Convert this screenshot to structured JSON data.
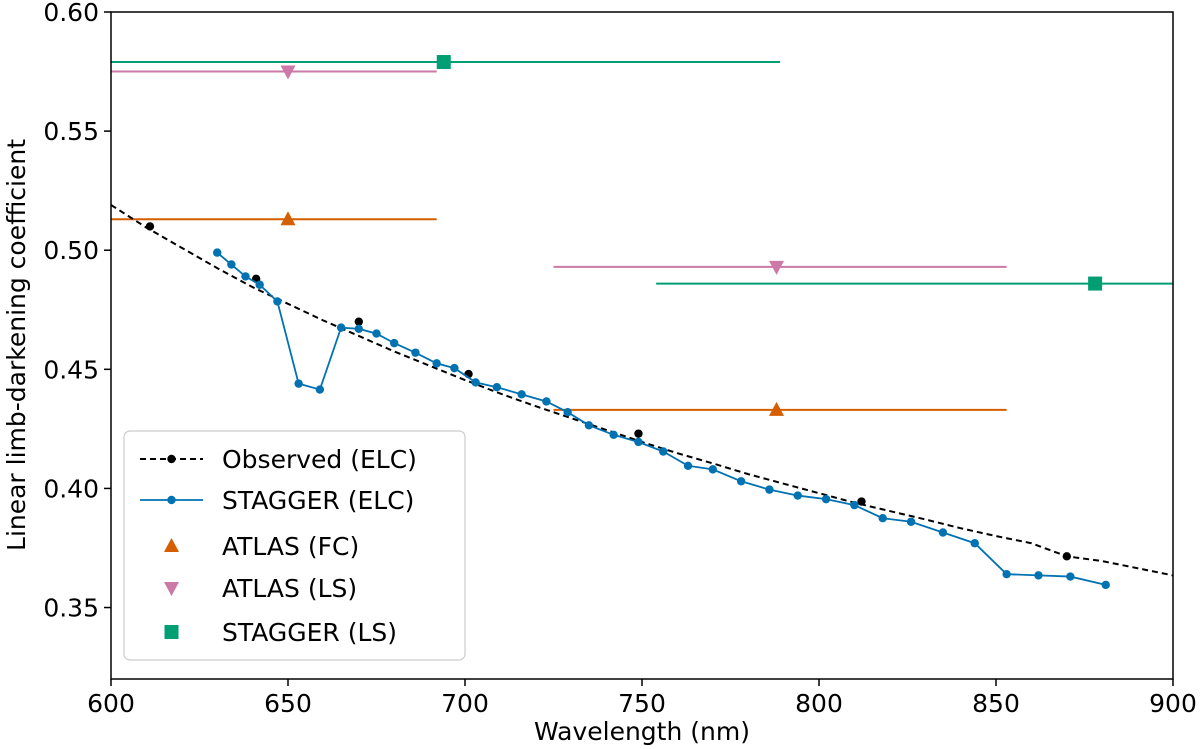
{
  "chart_data": {
    "type": "line",
    "title": "",
    "xlabel": "Wavelength (nm)",
    "ylabel": "Linear limb-darkening coefficient",
    "xlim": [
      600,
      900
    ],
    "ylim": [
      0.32,
      0.6
    ],
    "x_ticks": [
      600,
      650,
      700,
      750,
      800,
      850,
      900
    ],
    "x_tick_labels": [
      "600",
      "650",
      "700",
      "750",
      "800",
      "850",
      "900"
    ],
    "y_ticks": [
      0.35,
      0.4,
      0.45,
      0.5,
      0.55,
      0.6
    ],
    "y_tick_labels": [
      "0.35",
      "0.40",
      "0.45",
      "0.50",
      "0.55",
      "0.60"
    ],
    "grid": false,
    "legend_position": "lower-left",
    "series": [
      {
        "name": "Observed (ELC)",
        "kind": "dashed-line-with-points",
        "color": "#000000",
        "curve": [
          [
            600,
            0.519
          ],
          [
            610,
            0.5095
          ],
          [
            620,
            0.501
          ],
          [
            630,
            0.4925
          ],
          [
            640,
            0.4845
          ],
          [
            650,
            0.4775
          ],
          [
            660,
            0.4705
          ],
          [
            670,
            0.464
          ],
          [
            680,
            0.4575
          ],
          [
            690,
            0.4515
          ],
          [
            700,
            0.4455
          ],
          [
            710,
            0.4398
          ],
          [
            720,
            0.4345
          ],
          [
            730,
            0.4295
          ],
          [
            740,
            0.4245
          ],
          [
            750,
            0.4195
          ],
          [
            760,
            0.4148
          ],
          [
            770,
            0.4105
          ],
          [
            780,
            0.406
          ],
          [
            790,
            0.402
          ],
          [
            800,
            0.398
          ],
          [
            810,
            0.394
          ],
          [
            820,
            0.3905
          ],
          [
            830,
            0.387
          ],
          [
            840,
            0.3833
          ],
          [
            850,
            0.38
          ],
          [
            860,
            0.377
          ],
          [
            870,
            0.3715
          ],
          [
            880,
            0.3695
          ],
          [
            890,
            0.3665
          ],
          [
            900,
            0.3635
          ]
        ],
        "points": [
          [
            611,
            0.51
          ],
          [
            641,
            0.488
          ],
          [
            670,
            0.47
          ],
          [
            701,
            0.448
          ],
          [
            749,
            0.423
          ],
          [
            812,
            0.3945
          ],
          [
            870,
            0.3715
          ]
        ]
      },
      {
        "name": "STAGGER (ELC)",
        "kind": "line-with-points",
        "color": "#0072b2",
        "points": [
          [
            630,
            0.499
          ],
          [
            634,
            0.494
          ],
          [
            638,
            0.489
          ],
          [
            642,
            0.4855
          ],
          [
            647,
            0.4785
          ],
          [
            653,
            0.444
          ],
          [
            659,
            0.4415
          ],
          [
            665,
            0.4675
          ],
          [
            670,
            0.467
          ],
          [
            675,
            0.465
          ],
          [
            680,
            0.461
          ],
          [
            686,
            0.457
          ],
          [
            692,
            0.4525
          ],
          [
            697,
            0.4505
          ],
          [
            703,
            0.4445
          ],
          [
            709,
            0.4425
          ],
          [
            716,
            0.4395
          ],
          [
            723,
            0.4365
          ],
          [
            729,
            0.432
          ],
          [
            735,
            0.4265
          ],
          [
            742,
            0.4225
          ],
          [
            749,
            0.4195
          ],
          [
            756,
            0.4155
          ],
          [
            763,
            0.4095
          ],
          [
            770,
            0.408
          ],
          [
            778,
            0.403
          ],
          [
            786,
            0.3995
          ],
          [
            794,
            0.397
          ],
          [
            802,
            0.3955
          ],
          [
            810,
            0.393
          ],
          [
            818,
            0.3875
          ],
          [
            826,
            0.386
          ],
          [
            835,
            0.3815
          ],
          [
            844,
            0.377
          ],
          [
            853,
            0.364
          ],
          [
            862,
            0.3635
          ],
          [
            871,
            0.363
          ],
          [
            881,
            0.3595
          ]
        ]
      },
      {
        "name": "ATLAS (FC)",
        "kind": "marker-with-range",
        "color": "#d55e00",
        "marker": "triangle-up",
        "points": [
          {
            "x": 650,
            "y": 0.513,
            "xmin": 600,
            "xmax": 692
          },
          {
            "x": 788,
            "y": 0.433,
            "xmin": 725,
            "xmax": 853
          }
        ]
      },
      {
        "name": "ATLAS (LS)",
        "kind": "marker-with-range",
        "color": "#cc79a7",
        "marker": "triangle-down",
        "points": [
          {
            "x": 650,
            "y": 0.575,
            "xmin": 600,
            "xmax": 692
          },
          {
            "x": 788,
            "y": 0.493,
            "xmin": 725,
            "xmax": 853
          }
        ]
      },
      {
        "name": "STAGGER (LS)",
        "kind": "marker-with-range",
        "color": "#009e73",
        "marker": "square",
        "points": [
          {
            "x": 694,
            "y": 0.579,
            "xmin": 600,
            "xmax": 789
          },
          {
            "x": 878,
            "y": 0.486,
            "xmin": 754,
            "xmax": 900
          }
        ]
      }
    ]
  }
}
